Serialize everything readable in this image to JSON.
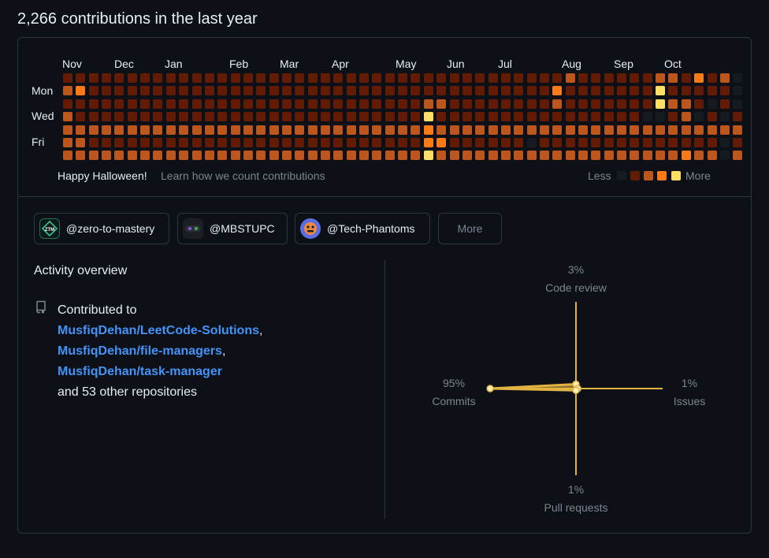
{
  "header": {
    "title": "2,266 contributions in the last year"
  },
  "calendar": {
    "months": [
      "Nov",
      "Dec",
      "Jan",
      "Feb",
      "Mar",
      "Apr",
      "May",
      "Jun",
      "Jul",
      "Aug",
      "Sep",
      "Oct"
    ],
    "day_labels": [
      "Mon",
      "Wed",
      "Fri"
    ],
    "palette": [
      "#161b22",
      "#631c03",
      "#bd561d",
      "#fa7a18",
      "#fddf68"
    ],
    "weeks": [
      [
        1,
        2,
        1,
        2,
        2,
        2,
        2
      ],
      [
        1,
        3,
        1,
        1,
        2,
        2,
        1
      ],
      [
        1,
        1,
        1,
        1,
        1,
        1,
        1
      ],
      [
        1,
        1,
        1,
        1,
        1,
        1,
        1
      ],
      [
        1,
        1,
        1,
        1,
        1,
        1,
        1
      ],
      [
        1,
        1,
        1,
        1,
        1,
        1,
        1
      ],
      [
        1,
        1,
        1,
        1,
        1,
        1,
        1
      ],
      [
        1,
        1,
        1,
        1,
        1,
        1,
        1
      ],
      [
        1,
        1,
        1,
        1,
        1,
        1,
        1
      ],
      [
        1,
        1,
        1,
        1,
        1,
        1,
        1
      ],
      [
        1,
        1,
        1,
        1,
        1,
        1,
        1
      ],
      [
        1,
        1,
        1,
        1,
        1,
        1,
        1
      ],
      [
        1,
        1,
        1,
        1,
        1,
        1,
        1
      ],
      [
        1,
        1,
        1,
        1,
        1,
        1,
        1
      ],
      [
        1,
        1,
        1,
        1,
        1,
        1,
        1
      ],
      [
        1,
        1,
        1,
        1,
        1,
        1,
        1
      ],
      [
        1,
        1,
        1,
        1,
        1,
        1,
        1
      ],
      [
        1,
        1,
        1,
        1,
        1,
        1,
        1
      ],
      [
        1,
        1,
        1,
        1,
        1,
        1,
        1
      ],
      [
        1,
        1,
        1,
        1,
        1,
        1,
        1
      ],
      [
        1,
        1,
        1,
        1,
        1,
        1,
        1
      ],
      [
        1,
        1,
        1,
        1,
        1,
        1,
        1
      ],
      [
        1,
        1,
        1,
        1,
        1,
        1,
        1
      ],
      [
        1,
        1,
        1,
        1,
        1,
        1,
        1
      ],
      [
        1,
        1,
        1,
        1,
        1,
        1,
        1
      ],
      [
        1,
        1,
        1,
        1,
        1,
        1,
        1
      ],
      [
        1,
        1,
        1,
        1,
        1,
        1,
        1
      ],
      [
        1,
        1,
        1,
        1,
        1,
        1,
        1
      ],
      [
        1,
        1,
        1,
        1,
        1,
        1,
        1
      ],
      [
        1,
        1,
        1,
        1,
        1,
        1,
        1
      ],
      [
        1,
        1,
        1,
        1,
        1,
        1,
        1
      ],
      [
        1,
        1,
        1,
        1,
        1,
        1,
        1
      ],
      [
        1,
        1,
        1,
        1,
        1,
        1,
        1
      ],
      [
        1,
        1,
        1,
        1,
        1,
        1,
        1
      ],
      [
        1,
        1,
        1,
        1,
        1,
        1,
        1
      ],
      [
        1,
        1,
        1,
        1,
        1,
        1,
        1
      ],
      [
        1,
        1,
        1,
        1,
        1,
        1,
        1
      ],
      [
        1,
        1,
        1,
        1,
        1,
        1,
        1
      ],
      [
        1,
        1,
        1,
        1,
        1,
        1,
        1
      ],
      [
        1,
        1,
        1,
        1,
        1,
        1,
        1
      ],
      [
        1,
        1,
        1,
        1,
        1,
        1,
        1
      ],
      [
        1,
        1,
        1,
        1,
        1,
        1,
        1
      ],
      [
        1,
        1,
        1,
        1,
        1,
        1,
        1
      ],
      [
        1,
        1,
        1,
        1,
        1,
        1,
        1
      ],
      [
        1,
        1,
        1,
        1,
        1,
        1,
        1
      ],
      [
        1,
        1,
        1,
        1,
        1,
        1,
        1
      ],
      [
        1,
        1,
        1,
        1,
        1,
        1,
        1
      ],
      [
        1,
        1,
        1,
        1,
        1,
        1,
        1
      ],
      [
        1,
        1,
        1,
        1,
        1,
        1,
        1
      ],
      [
        1,
        1,
        1,
        1,
        1,
        1,
        1
      ],
      [
        1,
        1,
        1,
        1,
        1,
        1,
        1
      ],
      [
        1,
        1,
        1,
        1,
        1,
        1,
        1
      ],
      [
        1,
        1,
        1,
        1,
        1,
        1,
        1
      ]
    ],
    "footer_note": "Happy Halloween!",
    "learn_link": "Learn how we count contributions",
    "legend_less": "Less",
    "legend_more": "More"
  },
  "orgs": [
    {
      "handle": "@zero-to-mastery",
      "avatar_icon": "ztm-logo-icon"
    },
    {
      "handle": "@MBSTUPC",
      "avatar_icon": "mbstupc-logo-icon"
    },
    {
      "handle": "@Tech-Phantoms",
      "avatar_icon": "tech-phantoms-logo-icon"
    }
  ],
  "orgs_more": "More",
  "activity": {
    "title": "Activity overview",
    "contributed_to": "Contributed to",
    "repos": [
      "MusfiqDehan/LeetCode-Solutions",
      "MusfiqDehan/file-managers",
      "MusfiqDehan/task-manager"
    ],
    "others": "and 53 other repositories"
  },
  "radar": {
    "accent": "#e3b341",
    "code_review": {
      "label": "Code review",
      "pct": "3%",
      "value": 3
    },
    "commits": {
      "label": "Commits",
      "pct": "95%",
      "value": 95
    },
    "issues": {
      "label": "Issues",
      "pct": "1%",
      "value": 1
    },
    "pull_requests": {
      "label": "Pull requests",
      "pct": "1%",
      "value": 1
    }
  }
}
